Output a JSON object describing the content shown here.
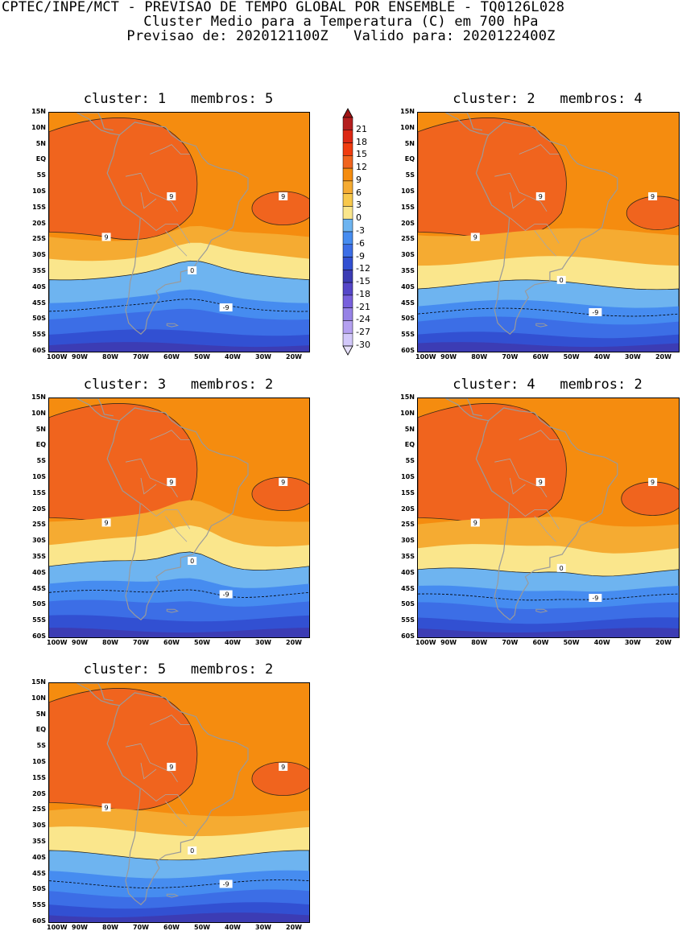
{
  "header": {
    "line1": "CPTEC/INPE/MCT - PREVISAO DE TEMPO GLOBAL POR ENSEMBLE - TQ0126L028",
    "line2": "Cluster Medio para a Temperatura (C) em 700 hPa",
    "line3": "Previsao de: 2020121100Z   Valido para: 2020122400Z"
  },
  "map_axes": {
    "lat_labels": [
      "15N",
      "10N",
      "5N",
      "EQ",
      "5S",
      "10S",
      "15S",
      "20S",
      "25S",
      "30S",
      "35S",
      "40S",
      "45S",
      "50S",
      "55S",
      "60S"
    ],
    "lon_labels": [
      "100W",
      "90W",
      "80W",
      "70W",
      "60W",
      "50W",
      "40W",
      "30W",
      "20W"
    ]
  },
  "colorbar": {
    "labels": [
      "21",
      "18",
      "15",
      "12",
      "9",
      "6",
      "3",
      "0",
      "-3",
      "-6",
      "-9",
      "-12",
      "-15",
      "-18",
      "-21",
      "-24",
      "-27",
      "-30"
    ],
    "colors": [
      "#b41e1e",
      "#dc2814",
      "#f03c0f",
      "#f0641e",
      "#f58c0f",
      "#f5ab32",
      "#f8c84b",
      "#fae68c",
      "#6eb4f0",
      "#468cf0",
      "#3c6ee6",
      "#3250d2",
      "#3c3cb4",
      "#5546c8",
      "#7860dc",
      "#9682e6",
      "#b4a0f0",
      "#d2c8fa"
    ],
    "top_color": "#a01414",
    "bottom_color": "#e6e0fa"
  },
  "panels": [
    {
      "title": "cluster: 1   membros: 5"
    },
    {
      "title": "cluster: 2   membros: 4"
    },
    {
      "title": "cluster: 3   membros: 2"
    },
    {
      "title": "cluster: 4   membros: 2"
    },
    {
      "title": "cluster: 5   membros: 2"
    }
  ],
  "contour_labels": {
    "warm": "9",
    "zero": "0",
    "cold": "-9"
  }
}
